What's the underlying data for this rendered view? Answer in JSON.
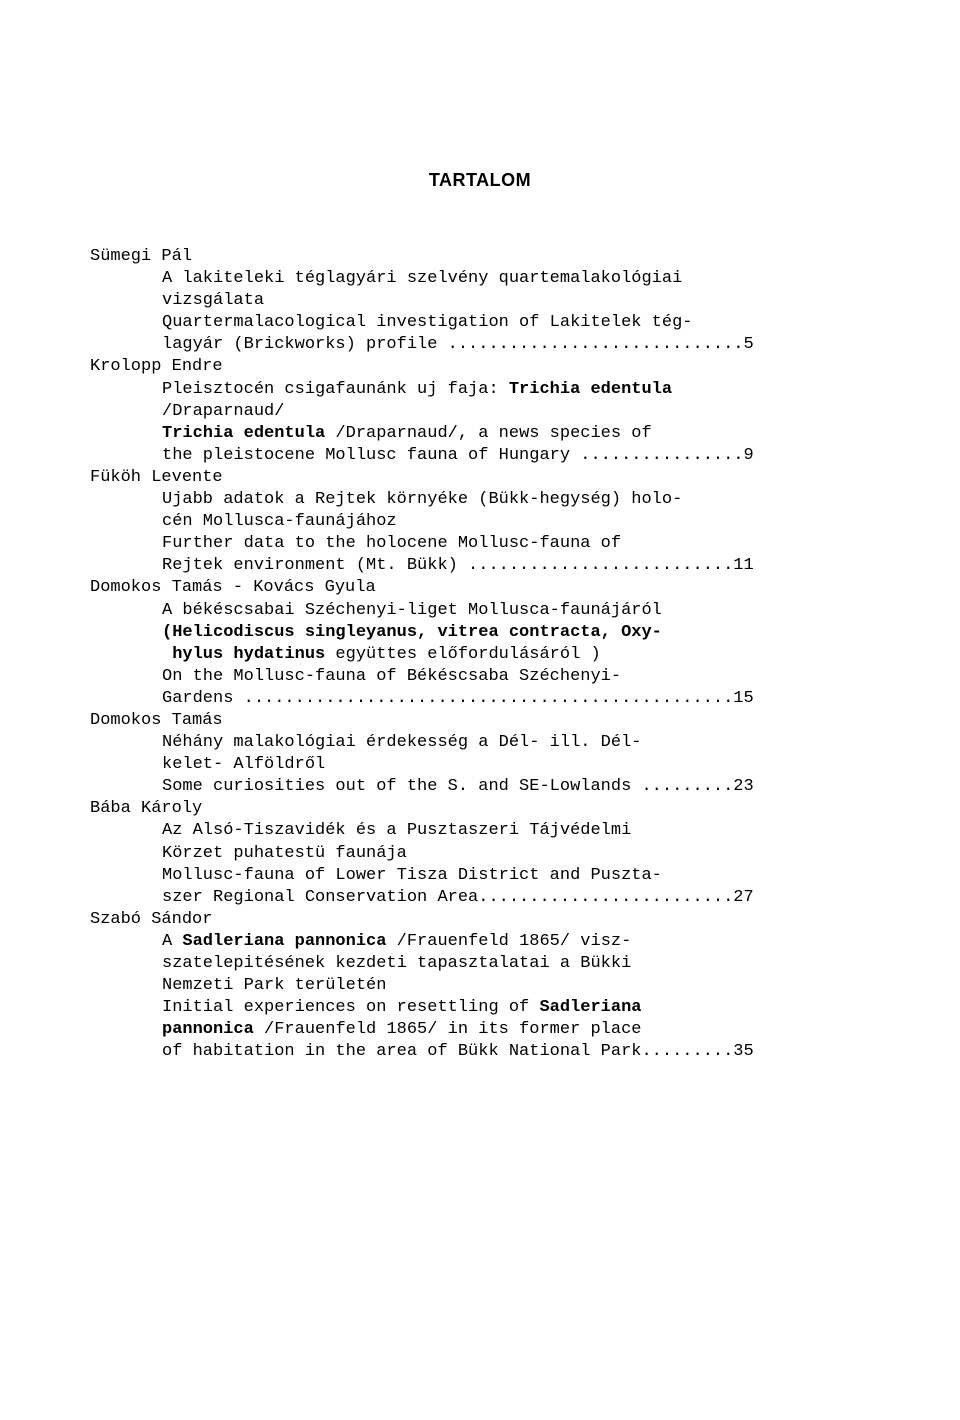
{
  "title": "TARTALOM",
  "entries": [
    {
      "author": "Sümegi Pál",
      "lines": [
        {
          "text": "A lakiteleki téglagyári szelvény quartemalakológiai",
          "bold": false
        },
        {
          "text": "vizsgálata",
          "bold": false
        },
        {
          "text": "Quartermalacological investigation of Lakitelek tég-",
          "bold": false
        },
        {
          "text": "lagyár (Brickworks) profile .............................5",
          "bold": false
        }
      ]
    },
    {
      "author": "Krolopp Endre",
      "lines": [
        {
          "text": "Pleisztocén csigafaunánk uj faja: ",
          "bold": false,
          "append": {
            "text": "Trichia edentula",
            "bold": true
          }
        },
        {
          "text": "/Draparnaud/",
          "bold": false
        },
        {
          "text": "Trichia edentula",
          "bold": true,
          "append": {
            "text": " /Draparnaud/, a news species of",
            "bold": false
          }
        },
        {
          "text": "the pleistocene Mollusc fauna of Hungary ................9",
          "bold": false
        }
      ]
    },
    {
      "author": "Füköh Levente",
      "lines": [
        {
          "text": "Ujabb adatok a Rejtek környéke (Bükk-hegység) holo-",
          "bold": false
        },
        {
          "text": "cén Mollusca-faunájához",
          "bold": false
        },
        {
          "text": "Further data to the holocene Mollusc-fauna of",
          "bold": false
        },
        {
          "text": "Rejtek environment (Mt. Bükk) ..........................11",
          "bold": false
        }
      ]
    },
    {
      "author": "Domokos Tamás - Kovács Gyula",
      "lines": [
        {
          "text": "A békéscsabai Széchenyi-liget Mollusca-faunájáról",
          "bold": false
        },
        {
          "text": "(Helicodiscus singleyanus, vitrea contracta, Oxy-",
          "bold": true
        },
        {
          "text": " hylus hydatinus",
          "bold": true,
          "append": {
            "text": " együttes előfordulásáról )",
            "bold": false
          }
        },
        {
          "text": "On the Mollusc-fauna of Békéscsaba Széchenyi-",
          "bold": false
        },
        {
          "text": "Gardens ................................................15",
          "bold": false
        }
      ]
    },
    {
      "author": "Domokos Tamás",
      "lines": [
        {
          "text": "Néhány malakológiai érdekesség a Dél- ill. Dél-",
          "bold": false
        },
        {
          "text": "kelet- Alföldről",
          "bold": false
        },
        {
          "text": "Some curiosities out of the S. and SE-Lowlands .........23",
          "bold": false
        }
      ]
    },
    {
      "author": "Bába Károly",
      "lines": [
        {
          "text": "Az Alsó-Tiszavidék és a Pusztaszeri Tájvédelmi",
          "bold": false
        },
        {
          "text": "Körzet puhatestü faunája",
          "bold": false
        },
        {
          "text": "Mollusc-fauna of Lower Tisza District and Puszta-",
          "bold": false
        },
        {
          "text": "szer Regional Conservation Area.........................27",
          "bold": false
        }
      ]
    },
    {
      "author": "Szabó Sándor",
      "lines": [
        {
          "text": "A ",
          "bold": false,
          "append": {
            "text": "Sadleriana pannonica",
            "bold": true,
            "append2": {
              "text": " /Frauenfeld 1865/ visz-",
              "bold": false
            }
          }
        },
        {
          "text": "szatelepitésének kezdeti tapasztalatai a Bükki",
          "bold": false
        },
        {
          "text": "Nemzeti Park területén",
          "bold": false
        },
        {
          "text": "Initial experiences on resettling of ",
          "bold": false,
          "append": {
            "text": "Sadleriana",
            "bold": true
          }
        },
        {
          "text": "pannonica",
          "bold": true,
          "append": {
            "text": " /Frauenfeld 1865/ in its former place",
            "bold": false
          }
        },
        {
          "text": "of habitation in the area of Bükk National Park.........35",
          "bold": false
        }
      ]
    }
  ]
}
